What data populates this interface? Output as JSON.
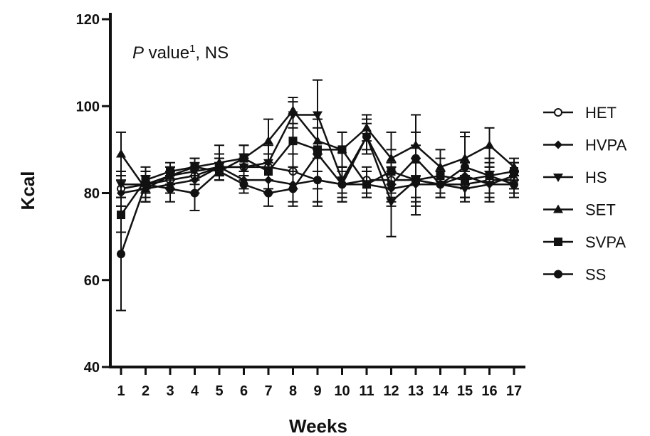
{
  "chart_data": {
    "type": "line",
    "title": "",
    "xlabel": "Weeks",
    "ylabel": "Kcal",
    "ylim": [
      40,
      120
    ],
    "yticks": [
      "40",
      "60",
      "80",
      "100",
      "120"
    ],
    "categories": [
      "1",
      "2",
      "3",
      "4",
      "5",
      "6",
      "7",
      "8",
      "9",
      "10",
      "11",
      "12",
      "13",
      "14",
      "15",
      "16",
      "17"
    ],
    "annotation": {
      "italic": "P",
      "text": " value",
      "sup": "1",
      "suffix": ", NS"
    },
    "legend_position": "right",
    "grid": false,
    "series": [
      {
        "name": "HET",
        "marker": "circle-open",
        "values": [
          81,
          82,
          83,
          84,
          86,
          86,
          86,
          85,
          83,
          82,
          83,
          83,
          83,
          82,
          82,
          83,
          83
        ],
        "errors": [
          4,
          3,
          2,
          2,
          2,
          2,
          3,
          4,
          6,
          3,
          3,
          4,
          4,
          3,
          3,
          3,
          2
        ]
      },
      {
        "name": "HVPA",
        "marker": "diamond",
        "values": [
          80,
          81,
          82,
          83,
          86,
          83,
          83,
          82,
          83,
          82,
          82,
          81,
          82,
          82,
          84,
          82,
          82
        ],
        "errors": [
          3,
          3,
          2,
          3,
          2,
          2,
          3,
          4,
          5,
          4,
          3,
          4,
          5,
          3,
          3,
          3,
          2
        ]
      },
      {
        "name": "HS",
        "marker": "triangle-down",
        "values": [
          82,
          82,
          84,
          85,
          86,
          86,
          87,
          98,
          98,
          83,
          93,
          78,
          83,
          82,
          81,
          82,
          84
        ],
        "errors": [
          3,
          2,
          2,
          2,
          3,
          3,
          4,
          3,
          8,
          3,
          3,
          8,
          8,
          3,
          3,
          4,
          3
        ]
      },
      {
        "name": "SET",
        "marker": "triangle-up",
        "values": [
          89,
          81,
          84,
          86,
          87,
          88,
          92,
          99,
          92,
          90,
          95,
          88,
          91,
          86,
          88,
          91,
          86
        ],
        "errors": [
          5,
          3,
          2,
          2,
          4,
          3,
          5,
          3,
          14,
          4,
          3,
          6,
          7,
          4,
          6,
          4,
          2
        ]
      },
      {
        "name": "SVPA",
        "marker": "square",
        "values": [
          75,
          83,
          85,
          86,
          85,
          88,
          85,
          92,
          90,
          90,
          82,
          85,
          83,
          84,
          83,
          84,
          85
        ],
        "errors": [
          4,
          2,
          2,
          2,
          2,
          3,
          4,
          6,
          5,
          4,
          3,
          5,
          5,
          4,
          4,
          4,
          2
        ]
      },
      {
        "name": "SS",
        "marker": "circle",
        "values": [
          66,
          82,
          81,
          80,
          85,
          82,
          80,
          81,
          89,
          82,
          93,
          82,
          88,
          82,
          86,
          84,
          82
        ],
        "errors": [
          13,
          4,
          3,
          4,
          2,
          2,
          3,
          4,
          8,
          4,
          4,
          4,
          6,
          3,
          7,
          4,
          3
        ]
      }
    ]
  }
}
